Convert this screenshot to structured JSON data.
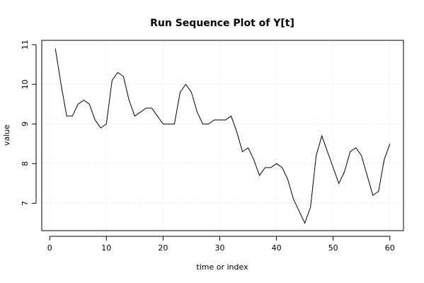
{
  "chart_data": {
    "type": "line",
    "title": "Run Sequence Plot of Y[t]",
    "xlabel": "time or index",
    "ylabel": "value",
    "xlim": [
      -1.4,
      62.4
    ],
    "ylim": [
      6.31,
      11.11
    ],
    "x_ticks": [
      0,
      10,
      20,
      30,
      40,
      50,
      60
    ],
    "y_ticks": [
      7,
      8,
      9,
      10,
      11
    ],
    "grid": true,
    "colors": {
      "line": "#000000",
      "grid": "#d8d8d8"
    },
    "series": [
      {
        "x": [
          1,
          2,
          3,
          4,
          5,
          6,
          7,
          8,
          9,
          10,
          11,
          12,
          13,
          14,
          15,
          16,
          17,
          18,
          19,
          20,
          21,
          22,
          23,
          24,
          25,
          26,
          27,
          28,
          29,
          30,
          31,
          32,
          33,
          34,
          35,
          36,
          37,
          38,
          39,
          40,
          41,
          42,
          43,
          44,
          45,
          46,
          47,
          48,
          49,
          50,
          51,
          52,
          53,
          54,
          55,
          56,
          57,
          58,
          59,
          60
        ],
        "values": [
          10.9,
          10.0,
          9.2,
          9.2,
          9.5,
          9.6,
          9.5,
          9.1,
          8.9,
          9.0,
          10.1,
          10.3,
          10.2,
          9.6,
          9.2,
          9.3,
          9.4,
          9.4,
          9.2,
          9.0,
          9.0,
          9.0,
          9.8,
          10.0,
          9.8,
          9.3,
          9.0,
          9.0,
          9.1,
          9.1,
          9.1,
          9.2,
          8.8,
          8.3,
          8.4,
          8.1,
          7.7,
          7.9,
          7.9,
          8.0,
          7.9,
          7.6,
          7.1,
          6.8,
          6.5,
          6.9,
          8.2,
          8.7,
          8.3,
          7.9,
          7.5,
          7.8,
          8.3,
          8.4,
          8.2,
          7.7,
          7.2,
          7.3,
          8.1,
          8.5
        ]
      }
    ]
  }
}
